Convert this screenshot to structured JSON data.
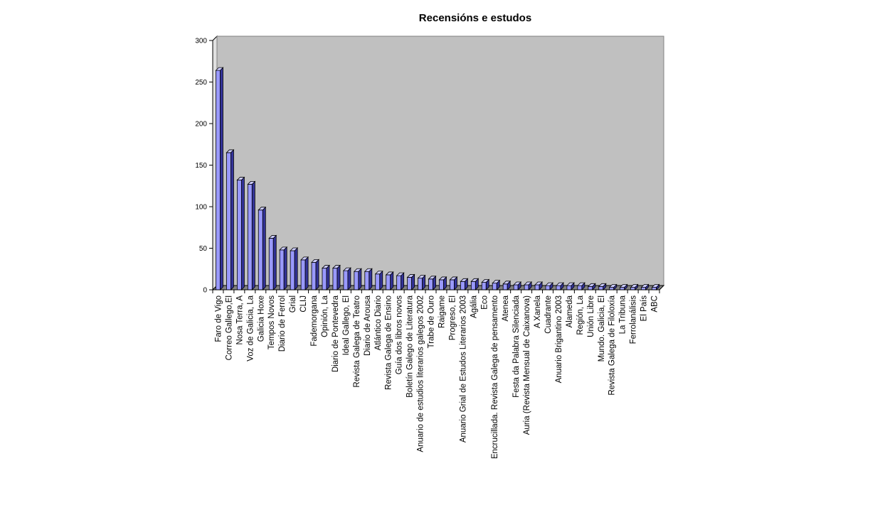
{
  "chart_data": {
    "type": "bar",
    "title": "Recensións e estudos",
    "xlabel": "",
    "ylabel": "",
    "ylim": [
      0,
      300
    ],
    "yticks": [
      0,
      50,
      100,
      150,
      200,
      250,
      300
    ],
    "grid": false,
    "legend": "none",
    "categories": [
      "Faro de Vigo",
      "Correo Gallego,El",
      "Nosa Terra, A",
      "Voz de Galicia, La",
      "Galicia Hoxe",
      "Tempos Novos",
      "Diario de Ferrol",
      "Grial",
      "CLIJ",
      "Fademorgana",
      "Opinión, La",
      "Diario de Pontevedra",
      "Ideal Gallego, El",
      "Revista Galega de Teatro",
      "Diario de Arousa",
      "Atlántico Diario",
      "Revista Galega de Ensino",
      "Guía dos libros novos",
      "Boletín Galego de Literatura",
      "Anuario de estudios literarios galegos 2002",
      "Trabe de Ouro",
      "Raigame",
      "Progreso, El",
      "Anuario Grial de Estudos Literarios 2003",
      "Agália",
      "Eco",
      "Encrucillada. Revista Galega de pensamento",
      "Atenea",
      "Festa da Palabra Silenciada",
      "Auria (Revista Mensual de Caixanova)",
      "A Xanela",
      "Cuadrante",
      "Anuario Brigantino 2003",
      "Alameda",
      "Región, La",
      "Unión Libre",
      "Mundo. Galicia, El",
      "Revista Galega de Filoloxía",
      "La Tribuna",
      "Ferrolanálisis",
      "El País",
      "ABC"
    ],
    "values": [
      264,
      165,
      132,
      127,
      96,
      62,
      48,
      47,
      36,
      33,
      26,
      26,
      23,
      22,
      22,
      19,
      18,
      17,
      15,
      14,
      13,
      12,
      12,
      10,
      10,
      9,
      8,
      7,
      6,
      6,
      6,
      5,
      5,
      5,
      5,
      4,
      4,
      3,
      3,
      3,
      3,
      3
    ],
    "colors": {
      "bar_front": "#9999ff",
      "bar_side": "#333399",
      "bar_top": "#ccccff",
      "plot_bg": "#c0c0c0",
      "wall_side": "#e0e0e0"
    }
  }
}
